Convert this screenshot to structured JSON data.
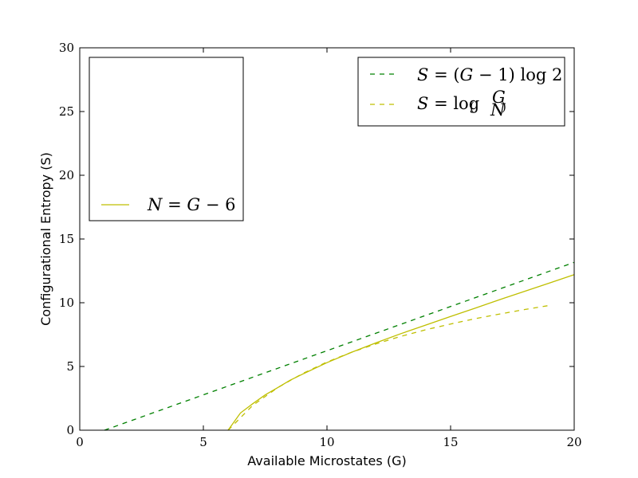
{
  "chart_data": {
    "type": "line",
    "xlabel": "Available Microstates (G)",
    "ylabel": "Configurational Entropy (S)",
    "xlim": [
      0,
      20
    ],
    "ylim": [
      0,
      30
    ],
    "x_ticks": [
      "0",
      "5",
      "10",
      "15",
      "20"
    ],
    "y_ticks": [
      "0",
      "5",
      "10",
      "15",
      "20",
      "25",
      "30"
    ],
    "grid": false,
    "series": [
      {
        "name": "S = (G − 1) log 2",
        "style": "dashed",
        "color": "#008000",
        "x": [
          1,
          20
        ],
        "y": [
          0,
          13.17
        ]
      },
      {
        "name": "S = log (G choose N)",
        "style": "dashed",
        "color": "#bfbf00",
        "x": [
          6,
          7,
          8,
          9,
          10,
          11,
          12,
          13,
          14,
          15,
          16,
          17,
          18,
          19
        ],
        "y": [
          0,
          1.95,
          3.33,
          4.43,
          5.35,
          6.12,
          6.78,
          7.37,
          7.88,
          8.33,
          8.75,
          9.12,
          9.47,
          9.79
        ]
      },
      {
        "name": "N = G − 6",
        "style": "solid",
        "color": "#bfbf00",
        "x": [
          6,
          6.5,
          7,
          7.5,
          8,
          8.5,
          9,
          10,
          11,
          12,
          13,
          14,
          15,
          16,
          17,
          18,
          19,
          20
        ],
        "y": [
          0,
          1.35,
          2.08,
          2.77,
          3.33,
          3.91,
          4.39,
          5.3,
          6.12,
          6.87,
          7.58,
          8.25,
          8.92,
          9.58,
          10.25,
          10.9,
          11.55,
          12.2
        ]
      }
    ],
    "legends": [
      {
        "position": "upper-right",
        "entries": [
          {
            "series": 0,
            "label": "S = (G − 1) log 2"
          },
          {
            "series": 1,
            "label": "S = log (G N)"
          }
        ]
      },
      {
        "position": "upper-left",
        "entries": [
          {
            "series": 2,
            "label": "N = G − 6"
          }
        ]
      }
    ]
  }
}
